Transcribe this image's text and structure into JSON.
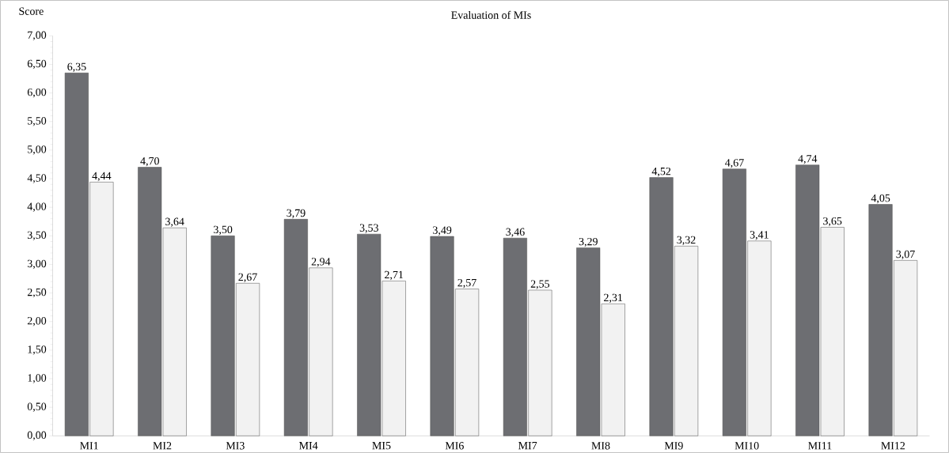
{
  "chart_data": {
    "type": "bar",
    "title": "Evaluation of MIs",
    "ylabel": "Score",
    "categories": [
      "MI1",
      "MI2",
      "MI3",
      "MI4",
      "MI5",
      "MI6",
      "MI7",
      "MI8",
      "MI9",
      "MI10",
      "MI11",
      "MI12"
    ],
    "series": [
      {
        "color": "#6d6e72",
        "values": [
          6.35,
          4.7,
          3.5,
          3.79,
          3.53,
          3.49,
          3.46,
          3.29,
          4.52,
          4.67,
          4.74,
          4.05
        ],
        "value_labels": [
          "6,35",
          "4,70",
          "3,50",
          "3,79",
          "3,53",
          "3,49",
          "3,46",
          "3,29",
          "4,52",
          "4,67",
          "4,74",
          "4,05"
        ]
      },
      {
        "color": "#f2f2f2",
        "values": [
          4.44,
          3.64,
          2.67,
          2.94,
          2.71,
          2.57,
          2.55,
          2.31,
          3.32,
          3.41,
          3.65,
          3.07
        ],
        "value_labels": [
          "4,44",
          "3,64",
          "2,67",
          "2,94",
          "2,71",
          "2,57",
          "2,55",
          "2,31",
          "3,32",
          "3,41",
          "3,65",
          "3,07"
        ]
      }
    ],
    "ylim": [
      0,
      7
    ],
    "yticks": [
      {
        "value": 0,
        "label": "0,00"
      },
      {
        "value": 0.5,
        "label": "0,50"
      },
      {
        "value": 1,
        "label": "1,00"
      },
      {
        "value": 1.5,
        "label": "1,50"
      },
      {
        "value": 2,
        "label": "2,00"
      },
      {
        "value": 2.5,
        "label": "2,50"
      },
      {
        "value": 3,
        "label": "3,00"
      },
      {
        "value": 3.5,
        "label": "3,50"
      },
      {
        "value": 4,
        "label": "4,00"
      },
      {
        "value": 4.5,
        "label": "4,50"
      },
      {
        "value": 5,
        "label": "5,00"
      },
      {
        "value": 5.5,
        "label": "5,50"
      },
      {
        "value": 6,
        "label": "6,00"
      },
      {
        "value": 6.5,
        "label": "6,50"
      },
      {
        "value": 7,
        "label": "7,00"
      }
    ],
    "grid": false
  }
}
